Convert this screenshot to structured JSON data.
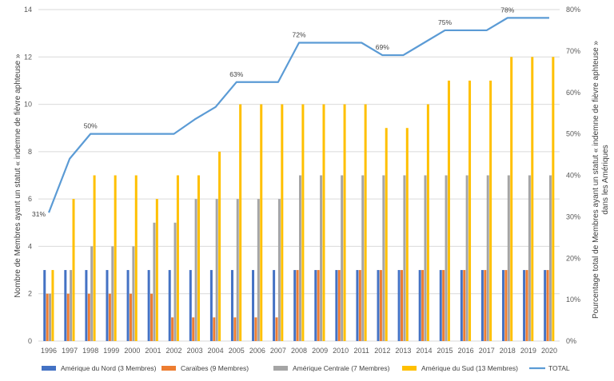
{
  "chart_data": {
    "type": "bar",
    "categories": [
      "1996",
      "1997",
      "1998",
      "1999",
      "2000",
      "2001",
      "2002",
      "2003",
      "2004",
      "2005",
      "2006",
      "2007",
      "2008",
      "2009",
      "2010",
      "2011",
      "2012",
      "2013",
      "2014",
      "2015",
      "2016",
      "2017",
      "2018",
      "2019",
      "2020"
    ],
    "series": [
      {
        "name": "Amérique du Nord (3 Membres)",
        "color": "#4472C4",
        "values": [
          3,
          3,
          3,
          3,
          3,
          3,
          3,
          3,
          3,
          3,
          3,
          3,
          3,
          3,
          3,
          3,
          3,
          3,
          3,
          3,
          3,
          3,
          3,
          3,
          3
        ]
      },
      {
        "name": "Caraïbes (9 Membres)",
        "color": "#ED7D31",
        "values": [
          2,
          2,
          2,
          2,
          2,
          2,
          1,
          1,
          1,
          1,
          1,
          1,
          3,
          3,
          3,
          3,
          3,
          3,
          3,
          3,
          3,
          3,
          3,
          3,
          3
        ]
      },
      {
        "name": "Amérique Centrale (7 Membres)",
        "color": "#A5A5A5",
        "values": [
          2,
          3,
          4,
          4,
          4,
          5,
          5,
          6,
          6,
          6,
          6,
          6,
          7,
          7,
          7,
          7,
          7,
          7,
          7,
          7,
          7,
          7,
          7,
          7,
          7
        ]
      },
      {
        "name": "Amérique du Sud (13 Membres)",
        "color": "#FFC000",
        "values": [
          3,
          6,
          7,
          7,
          7,
          6,
          7,
          7,
          8,
          10,
          10,
          10,
          10,
          10,
          10,
          10,
          9,
          9,
          10,
          11,
          11,
          11,
          12,
          12,
          12
        ]
      }
    ],
    "line_series": {
      "name": "TOTAL",
      "color": "#5B9BD5",
      "axis": "right",
      "values": [
        31,
        44,
        50,
        50,
        50,
        50,
        50,
        53.5,
        56.5,
        62.5,
        62.5,
        62.5,
        72,
        72,
        72,
        72,
        69,
        69,
        72,
        75,
        75,
        75,
        78,
        78,
        78
      ]
    },
    "data_labels": [
      {
        "index": 0,
        "text": "31%"
      },
      {
        "index": 2,
        "text": "50%"
      },
      {
        "index": 9,
        "text": "63%"
      },
      {
        "index": 12,
        "text": "72%"
      },
      {
        "index": 16,
        "text": "69%"
      },
      {
        "index": 19,
        "text": "75%"
      },
      {
        "index": 22,
        "text": "78%"
      }
    ],
    "y_ticks": [
      "0",
      "2",
      "4",
      "6",
      "8",
      "10",
      "12",
      "14"
    ],
    "y2_ticks": [
      "0%",
      "10%",
      "20%",
      "30%",
      "40%",
      "50%",
      "60%",
      "70%",
      "80%"
    ],
    "ylim": [
      0,
      14
    ],
    "y2lim": [
      0,
      80
    ],
    "ylabel": "Nombre de Membres ayant un statut « indemne de fièvre aphteuse »",
    "y2label_line1": "Pourcentage total de Membres ayant un statut « indemne de fièvre aphteuse »",
    "y2label_line2": "dans les Amériques",
    "grid": true,
    "legend_position": "bottom"
  }
}
